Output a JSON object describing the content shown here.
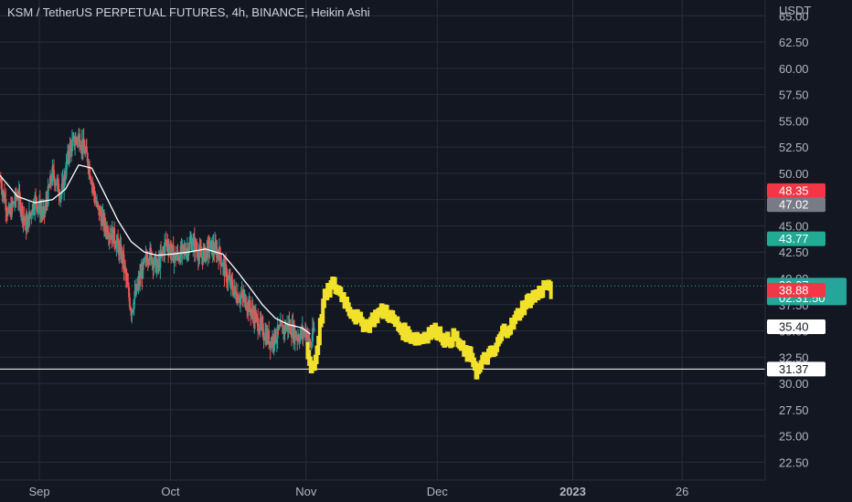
{
  "chart_data": {
    "type": "candlestick",
    "title": "KSM / TetherUS PERPETUAL FUTURES, 4h, BINANCE, Heikin Ashi",
    "currency": "USDT",
    "y_ticks": [
      "65.00",
      "62.50",
      "60.00",
      "57.50",
      "55.00",
      "52.50",
      "50.00",
      "47.50",
      "45.00",
      "42.50",
      "40.00",
      "37.50",
      "35.00",
      "32.50",
      "30.00",
      "27.50",
      "25.00",
      "22.50"
    ],
    "y_tick_values": [
      65,
      62.5,
      60,
      57.5,
      55,
      52.5,
      50,
      47.5,
      45,
      42.5,
      40,
      37.5,
      35,
      32.5,
      30,
      27.5,
      25,
      22.5
    ],
    "ylim": [
      20.8,
      66.5
    ],
    "x_ticks": [
      "Sep",
      "Oct",
      "Nov",
      "Dec",
      "2023",
      "26"
    ],
    "x_tick_dates": [
      "2022-09-01",
      "2022-10-01",
      "2022-11-01",
      "2022-12-01",
      "2023-01-01",
      "2023-01-26"
    ],
    "xlim": [
      "2022-08-23",
      "2023-02-14"
    ],
    "grid": true,
    "colors": {
      "bull": "#26a69a",
      "bear": "#ef5350",
      "ma": "#ffffff",
      "drawing": "#f2e12b",
      "background": "#131722",
      "grid": "#2a2e39"
    },
    "candles_bull_color_hint": "teal up / red down",
    "price_series": [
      {
        "date": "2022-08-23",
        "value": 49.5
      },
      {
        "date": "2022-08-25",
        "value": 46
      },
      {
        "date": "2022-08-27",
        "value": 48
      },
      {
        "date": "2022-08-29",
        "value": 45
      },
      {
        "date": "2022-08-31",
        "value": 47.5
      },
      {
        "date": "2022-09-02",
        "value": 46
      },
      {
        "date": "2022-09-04",
        "value": 50
      },
      {
        "date": "2022-09-06",
        "value": 48
      },
      {
        "date": "2022-09-08",
        "value": 52.5
      },
      {
        "date": "2022-09-10",
        "value": 53.5
      },
      {
        "date": "2022-09-12",
        "value": 51.5
      },
      {
        "date": "2022-09-14",
        "value": 47
      },
      {
        "date": "2022-09-16",
        "value": 45
      },
      {
        "date": "2022-09-18",
        "value": 44
      },
      {
        "date": "2022-09-20",
        "value": 42
      },
      {
        "date": "2022-09-22",
        "value": 37
      },
      {
        "date": "2022-09-24",
        "value": 40
      },
      {
        "date": "2022-09-26",
        "value": 42.5
      },
      {
        "date": "2022-09-28",
        "value": 41
      },
      {
        "date": "2022-09-30",
        "value": 43.5
      },
      {
        "date": "2022-10-02",
        "value": 42
      },
      {
        "date": "2022-10-04",
        "value": 42.5
      },
      {
        "date": "2022-10-06",
        "value": 43.5
      },
      {
        "date": "2022-10-08",
        "value": 42
      },
      {
        "date": "2022-10-10",
        "value": 43
      },
      {
        "date": "2022-10-12",
        "value": 42.5
      },
      {
        "date": "2022-10-14",
        "value": 40
      },
      {
        "date": "2022-10-16",
        "value": 38.5
      },
      {
        "date": "2022-10-18",
        "value": 38
      },
      {
        "date": "2022-10-20",
        "value": 36.5
      },
      {
        "date": "2022-10-22",
        "value": 35
      },
      {
        "date": "2022-10-24",
        "value": 34
      },
      {
        "date": "2022-10-26",
        "value": 35
      },
      {
        "date": "2022-10-28",
        "value": 35.5
      },
      {
        "date": "2022-10-30",
        "value": 34.5
      },
      {
        "date": "2022-11-01",
        "value": 35
      },
      {
        "date": "2022-11-02",
        "value": 33.5
      },
      {
        "date": "2022-11-03",
        "value": 35.5
      }
    ],
    "moving_average": [
      {
        "date": "2022-08-23",
        "value": 49.8
      },
      {
        "date": "2022-08-27",
        "value": 47.8
      },
      {
        "date": "2022-08-31",
        "value": 47.2
      },
      {
        "date": "2022-09-04",
        "value": 47.5
      },
      {
        "date": "2022-09-07",
        "value": 48.5
      },
      {
        "date": "2022-09-10",
        "value": 50.8
      },
      {
        "date": "2022-09-13",
        "value": 50.5
      },
      {
        "date": "2022-09-16",
        "value": 48
      },
      {
        "date": "2022-09-19",
        "value": 45.5
      },
      {
        "date": "2022-09-22",
        "value": 43.5
      },
      {
        "date": "2022-09-25",
        "value": 42.5
      },
      {
        "date": "2022-09-28",
        "value": 42.2
      },
      {
        "date": "2022-10-01",
        "value": 42.3
      },
      {
        "date": "2022-10-05",
        "value": 42.5
      },
      {
        "date": "2022-10-09",
        "value": 42.8
      },
      {
        "date": "2022-10-13",
        "value": 42.3
      },
      {
        "date": "2022-10-16",
        "value": 40.8
      },
      {
        "date": "2022-10-19",
        "value": 39.2
      },
      {
        "date": "2022-10-22",
        "value": 37.5
      },
      {
        "date": "2022-10-25",
        "value": 36.2
      },
      {
        "date": "2022-10-28",
        "value": 35.6
      },
      {
        "date": "2022-10-31",
        "value": 35.3
      },
      {
        "date": "2022-11-02",
        "value": 34.7
      }
    ],
    "projection_path": [
      {
        "date": "2022-11-01",
        "value": 33.5
      },
      {
        "date": "2022-11-02",
        "value": 31.5
      },
      {
        "date": "2022-11-03",
        "value": 32
      },
      {
        "date": "2022-11-05",
        "value": 38
      },
      {
        "date": "2022-11-07",
        "value": 39.5
      },
      {
        "date": "2022-11-09",
        "value": 38.5
      },
      {
        "date": "2022-11-11",
        "value": 37
      },
      {
        "date": "2022-11-13",
        "value": 36
      },
      {
        "date": "2022-11-15",
        "value": 35.5
      },
      {
        "date": "2022-11-17",
        "value": 36.5
      },
      {
        "date": "2022-11-19",
        "value": 37
      },
      {
        "date": "2022-11-21",
        "value": 36
      },
      {
        "date": "2022-11-23",
        "value": 35
      },
      {
        "date": "2022-11-25",
        "value": 34.5
      },
      {
        "date": "2022-11-27",
        "value": 34.2
      },
      {
        "date": "2022-11-29",
        "value": 34.8
      },
      {
        "date": "2022-12-01",
        "value": 35
      },
      {
        "date": "2022-12-03",
        "value": 34
      },
      {
        "date": "2022-12-05",
        "value": 34.5
      },
      {
        "date": "2022-12-07",
        "value": 33
      },
      {
        "date": "2022-12-09",
        "value": 32.5
      },
      {
        "date": "2022-12-10",
        "value": 31
      },
      {
        "date": "2022-12-12",
        "value": 32.5
      },
      {
        "date": "2022-12-14",
        "value": 33
      },
      {
        "date": "2022-12-16",
        "value": 35
      },
      {
        "date": "2022-12-18",
        "value": 35.5
      },
      {
        "date": "2022-12-20",
        "value": 37
      },
      {
        "date": "2022-12-22",
        "value": 38
      },
      {
        "date": "2022-12-24",
        "value": 38.5
      },
      {
        "date": "2022-12-26",
        "value": 39.5
      },
      {
        "date": "2022-12-27",
        "value": 38.5
      }
    ],
    "horizontal_line": {
      "value": 31.37,
      "label": "31.37",
      "color": "#ffffff"
    },
    "last_price_dotted": 39.27,
    "price_badges": [
      {
        "value": 48.35,
        "label": "48.35",
        "bg": "#f23645",
        "fg": "#ffffff"
      },
      {
        "value": 47.02,
        "label": "47.02",
        "bg": "#787b86",
        "fg": "#ffffff"
      },
      {
        "value": 43.77,
        "label": "43.77",
        "bg": "#22ab94",
        "fg": "#ffffff"
      },
      {
        "value": 39.27,
        "label": "39.27",
        "sub": "02:31:50",
        "bg": "#26a69a",
        "fg": "#ffffff"
      },
      {
        "value": 38.88,
        "label": "38.88",
        "bg": "#f23645",
        "fg": "#ffffff"
      },
      {
        "value": 35.4,
        "label": "35.40",
        "bg": "#ffffff",
        "fg": "#131722"
      },
      {
        "value": 31.37,
        "label": "31.37",
        "bg": "#ffffff",
        "fg": "#131722"
      }
    ]
  }
}
